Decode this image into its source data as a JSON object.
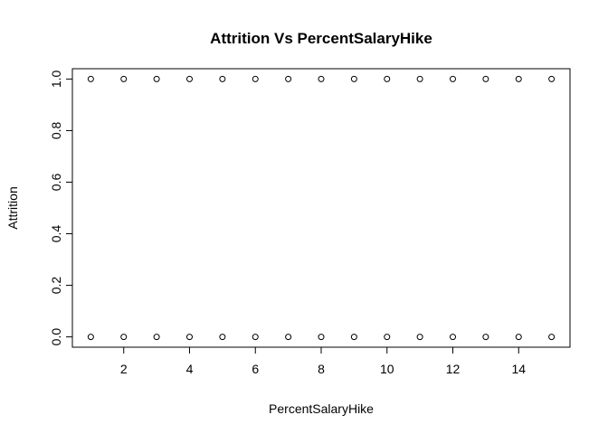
{
  "chart_data": {
    "type": "scatter",
    "title": "Attrition Vs PercentSalaryHike",
    "xlabel": "PercentSalaryHike",
    "ylabel": "Attrition",
    "xlim": [
      0.44,
      15.56
    ],
    "ylim": [
      -0.04,
      1.04
    ],
    "xticks": [
      2,
      4,
      6,
      8,
      10,
      12,
      14
    ],
    "xtick_labels": [
      "2",
      "4",
      "6",
      "8",
      "10",
      "12",
      "14"
    ],
    "yticks": [
      0,
      0.2,
      0.4,
      0.6,
      0.8,
      1
    ],
    "ytick_labels": [
      "0.0",
      "0.2",
      "0.4",
      "0.6",
      "0.8",
      "1.0"
    ],
    "grid": false,
    "legend": "none",
    "marker": "open-circle",
    "series": [
      {
        "x": [
          1,
          2,
          3,
          4,
          5,
          6,
          7,
          8,
          9,
          10,
          11,
          12,
          13,
          14,
          15,
          1,
          2,
          3,
          4,
          5,
          6,
          7,
          8,
          9,
          10,
          11,
          12,
          13,
          14,
          15
        ],
        "y": [
          1,
          1,
          1,
          1,
          1,
          1,
          1,
          1,
          1,
          1,
          1,
          1,
          1,
          1,
          1,
          0,
          0,
          0,
          0,
          0,
          0,
          0,
          0,
          0,
          0,
          0,
          0,
          0,
          0,
          0
        ]
      }
    ]
  }
}
